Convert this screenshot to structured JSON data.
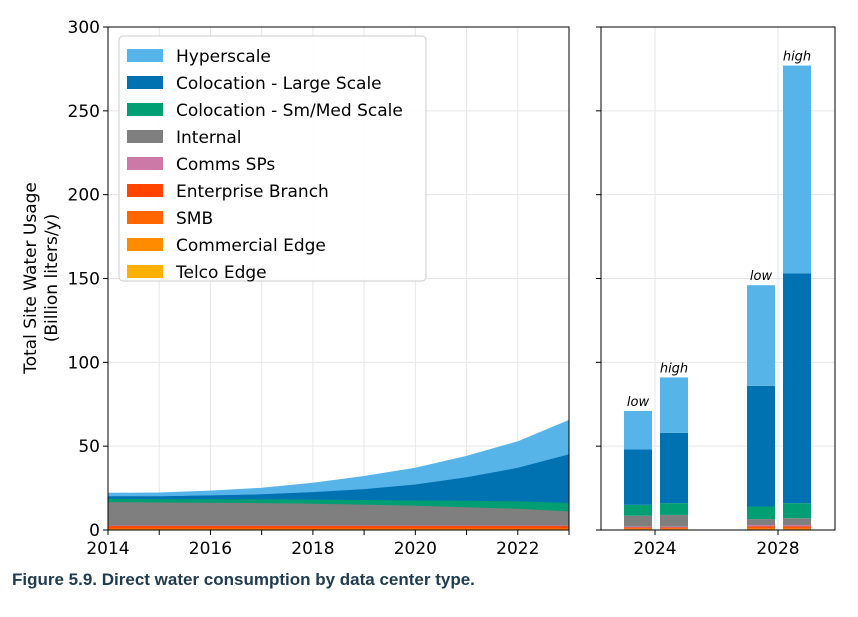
{
  "caption": "Figure 5.9.  Direct water consumption by data center type.",
  "colors": {
    "Hyperscale": "#56b4e9",
    "Colocation - Large Scale": "#0072b2",
    "Colocation - Sm/Med Scale": "#009e73",
    "Internal": "#7f7f7f",
    "Comms SPs": "#cc79a7",
    "Enterprise Branch": "#ff4500",
    "SMB": "#ff6600",
    "Commercial Edge": "#ff8c00",
    "Telco Edge": "#ffb000"
  },
  "chart_data": [
    {
      "type": "area",
      "stacked": true,
      "ylabel_lines": [
        "Total Site Water Usage",
        "(Billion liters/y)"
      ],
      "xlim": [
        2014,
        2023
      ],
      "ylim": [
        0,
        300
      ],
      "xticks": [
        2014,
        2016,
        2018,
        2020,
        2022
      ],
      "yticks": [
        0,
        50,
        100,
        150,
        200,
        250,
        300
      ],
      "grid": true,
      "legend_position": "upper-left",
      "x": [
        2014,
        2015,
        2016,
        2017,
        2018,
        2019,
        2020,
        2021,
        2022,
        2023
      ],
      "series": [
        {
          "name": "Telco Edge",
          "values": [
            0.3,
            0.3,
            0.3,
            0.3,
            0.3,
            0.3,
            0.3,
            0.3,
            0.3,
            0.3
          ]
        },
        {
          "name": "Commercial Edge",
          "values": [
            0.4,
            0.4,
            0.4,
            0.4,
            0.4,
            0.4,
            0.4,
            0.4,
            0.4,
            0.4
          ]
        },
        {
          "name": "SMB",
          "values": [
            0.8,
            0.8,
            0.8,
            0.8,
            0.8,
            0.8,
            0.8,
            0.8,
            0.8,
            0.8
          ]
        },
        {
          "name": "Enterprise Branch",
          "values": [
            1.0,
            1.0,
            1.0,
            1.0,
            1.0,
            1.0,
            1.0,
            1.0,
            1.0,
            1.0
          ]
        },
        {
          "name": "Comms SPs",
          "values": [
            0.3,
            0.3,
            0.3,
            0.3,
            0.3,
            0.3,
            0.3,
            0.3,
            0.3,
            0.3
          ]
        },
        {
          "name": "Internal",
          "values": [
            14.0,
            13.8,
            13.6,
            13.4,
            13.0,
            12.5,
            11.8,
            11.0,
            10.0,
            8.5
          ]
        },
        {
          "name": "Colocation - Sm/Med Scale",
          "values": [
            2.0,
            2.0,
            2.2,
            2.3,
            2.5,
            2.8,
            3.2,
            3.8,
            4.5,
            5.0
          ]
        },
        {
          "name": "Colocation - Large Scale",
          "values": [
            1.5,
            1.7,
            2.2,
            3.0,
            4.5,
            6.5,
            9.5,
            14.0,
            20.0,
            29.0
          ]
        },
        {
          "name": "Hyperscale",
          "values": [
            1.7,
            1.9,
            2.5,
            3.5,
            5.2,
            7.4,
            9.7,
            12.4,
            15.4,
            20.2
          ]
        }
      ],
      "legend": [
        "Hyperscale",
        "Colocation - Large Scale",
        "Colocation - Sm/Med Scale",
        "Internal",
        "Comms SPs",
        "Enterprise Branch",
        "SMB",
        "Commercial Edge",
        "Telco Edge"
      ]
    },
    {
      "type": "bar",
      "stacked": true,
      "ylim": [
        0,
        300
      ],
      "grid": true,
      "year_labels": [
        "2024",
        "2028"
      ],
      "bars": [
        {
          "year": "2024",
          "scenario": "low",
          "segments": [
            {
              "name": "Telco Edge",
              "value": 0.2
            },
            {
              "name": "Commercial Edge",
              "value": 0.3
            },
            {
              "name": "SMB",
              "value": 0.6
            },
            {
              "name": "Enterprise Branch",
              "value": 0.4
            },
            {
              "name": "Comms SPs",
              "value": 0.5
            },
            {
              "name": "Internal",
              "value": 6.5
            },
            {
              "name": "Colocation - Sm/Med Scale",
              "value": 6.5
            },
            {
              "name": "Colocation - Large Scale",
              "value": 33.0
            },
            {
              "name": "Hyperscale",
              "value": 23.0
            }
          ]
        },
        {
          "year": "2024",
          "scenario": "high",
          "segments": [
            {
              "name": "Telco Edge",
              "value": 0.2
            },
            {
              "name": "Commercial Edge",
              "value": 0.3
            },
            {
              "name": "SMB",
              "value": 0.6
            },
            {
              "name": "Enterprise Branch",
              "value": 0.4
            },
            {
              "name": "Comms SPs",
              "value": 0.5
            },
            {
              "name": "Internal",
              "value": 7.0
            },
            {
              "name": "Colocation - Sm/Med Scale",
              "value": 7.0
            },
            {
              "name": "Colocation - Large Scale",
              "value": 42.0
            },
            {
              "name": "Hyperscale",
              "value": 33.0
            }
          ]
        },
        {
          "year": "2028",
          "scenario": "low",
          "segments": [
            {
              "name": "Telco Edge",
              "value": 0.3
            },
            {
              "name": "Commercial Edge",
              "value": 0.4
            },
            {
              "name": "SMB",
              "value": 0.8
            },
            {
              "name": "Enterprise Branch",
              "value": 0.6
            },
            {
              "name": "Comms SPs",
              "value": 0.9
            },
            {
              "name": "Internal",
              "value": 3.5
            },
            {
              "name": "Colocation - Sm/Med Scale",
              "value": 7.5
            },
            {
              "name": "Colocation - Large Scale",
              "value": 72.0
            },
            {
              "name": "Hyperscale",
              "value": 60.0
            }
          ]
        },
        {
          "year": "2028",
          "scenario": "high",
          "segments": [
            {
              "name": "Telco Edge",
              "value": 0.3
            },
            {
              "name": "Commercial Edge",
              "value": 0.4
            },
            {
              "name": "SMB",
              "value": 0.8
            },
            {
              "name": "Enterprise Branch",
              "value": 0.6
            },
            {
              "name": "Comms SPs",
              "value": 0.9
            },
            {
              "name": "Internal",
              "value": 4.0
            },
            {
              "name": "Colocation - Sm/Med Scale",
              "value": 9.0
            },
            {
              "name": "Colocation - Large Scale",
              "value": 137.0
            },
            {
              "name": "Hyperscale",
              "value": 124.0
            }
          ]
        }
      ]
    }
  ]
}
